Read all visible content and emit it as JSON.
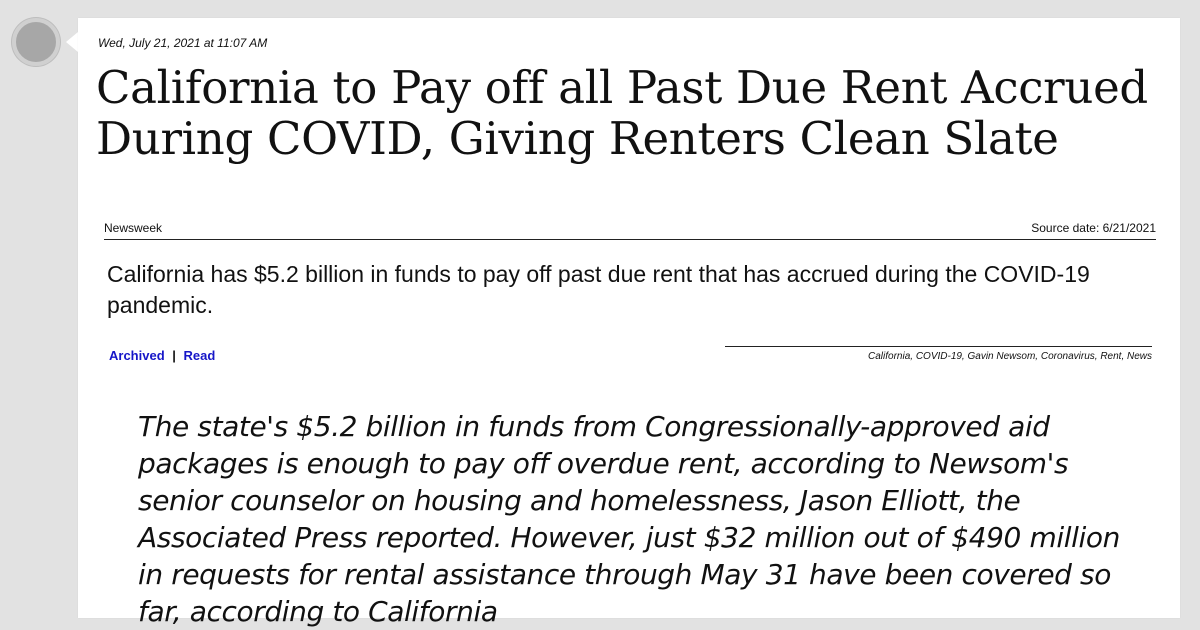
{
  "post": {
    "timestamp": "Wed, July 21, 2021 at 11:07 AM",
    "headline": "California to Pay off all Past Due Rent Accrued During COVID, Giving Renters Clean Slate",
    "source": "Newsweek",
    "source_date": "Source date: 6/21/2021",
    "summary": "California has $5.2 billion in funds to pay off past due rent that has accrued during the COVID-19 pandemic.",
    "links": {
      "archived": "Archived",
      "separator": "|",
      "read": "Read"
    },
    "tags": "California, COVID-19, Gavin Newsom, Coronavirus, Rent, News",
    "excerpt": "The state's $5.2 billion in funds from Congressionally-approved aid packages is enough to pay off overdue rent, according to Newsom's senior counselor on housing and homelessness, Jason Elliott, the Associated Press reported. However, just $32 million out of $490 million in requests for rental assistance through May 31 have been covered so far, according to California"
  },
  "icons": {
    "avatar": "avatar-circle",
    "pointer": "speech-pointer"
  }
}
